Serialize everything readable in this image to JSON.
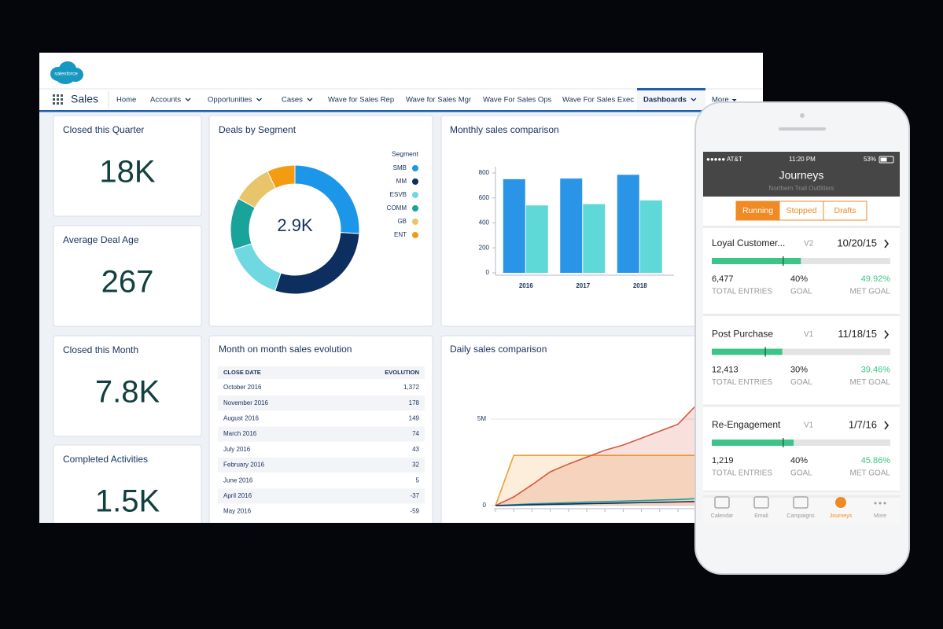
{
  "app": {
    "logo": "salesforce",
    "name": "Sales",
    "nav": [
      "Home",
      "Accounts",
      "Opportunities",
      "Cases",
      "Wave for Sales Rep",
      "Wave for Sales Mgr",
      "Wave For Sales Ops",
      "Wave For Sales Exec",
      "Dashboards",
      "More"
    ]
  },
  "kpis": [
    {
      "label": "Closed this Quarter",
      "value": "18K"
    },
    {
      "label": "Average Deal Age",
      "value": "267"
    },
    {
      "label": "Closed this Month",
      "value": "7.8K"
    },
    {
      "label": "Completed Activities",
      "value": "1.5K"
    }
  ],
  "chart_data": [
    {
      "type": "donut",
      "title": "Deals by Segment",
      "center_label": "2.9K",
      "legend_title": "Segment",
      "categories": [
        "SMB",
        "MM",
        "ESVB",
        "COMM",
        "GB",
        "ENT"
      ],
      "values": [
        26,
        29,
        15,
        13,
        10,
        7
      ],
      "colors": [
        "#1b96e8",
        "#0d2f5f",
        "#6fd8e0",
        "#1aa39a",
        "#e8c56a",
        "#f39c12"
      ]
    },
    {
      "type": "bar",
      "title": "Monthly sales comparison",
      "categories": [
        "2016",
        "2017",
        "2018"
      ],
      "series": [
        {
          "color": "#2a94e6",
          "values": [
            750,
            755,
            785
          ]
        },
        {
          "color": "#5fd8d8",
          "values": [
            540,
            550,
            580
          ]
        }
      ],
      "ylim": [
        0,
        850
      ],
      "yticks": [
        0,
        200,
        400,
        600,
        800
      ],
      "grid": false
    },
    {
      "type": "line",
      "title": "Daily sales comparison",
      "categories": [
        null,
        null,
        null,
        null,
        null,
        null,
        null,
        null,
        null,
        null,
        null,
        null
      ],
      "series": [
        {
          "color": "#f0a030",
          "values": [
            0,
            2900000,
            2900000,
            2900000,
            2900000,
            2900000,
            2900000,
            2900000,
            2900000,
            2900000,
            2900000,
            2900000
          ]
        },
        {
          "color": "#d9573f",
          "values": [
            0,
            500000,
            1200000,
            1950000,
            2400000,
            2800000,
            3200000,
            3500000,
            3900000,
            4300000,
            4700000,
            5800000
          ]
        },
        {
          "color": "#1aa39a",
          "values": [
            0,
            50000,
            100000,
            130000,
            160000,
            200000,
            230000,
            260000,
            290000,
            320000,
            350000,
            400000
          ]
        },
        {
          "color": "#0d2f5f",
          "values": [
            0,
            20000,
            50000,
            70000,
            90000,
            110000,
            130000,
            150000,
            170000,
            190000,
            210000,
            230000
          ]
        }
      ],
      "ylim": [
        0,
        8000000
      ],
      "yticks": [
        0,
        {
          "value": 5000000,
          "label": "5M"
        }
      ],
      "grid": true,
      "fill": true
    }
  ],
  "table": {
    "title": "Month on month sales evolution",
    "header": [
      "CLOSE DATE",
      "EVOLUTION"
    ],
    "rows": [
      [
        "October 2016",
        "1,372"
      ],
      [
        "November 2016",
        "178"
      ],
      [
        "August 2016",
        "149"
      ],
      [
        "March 2016",
        "74"
      ],
      [
        "July 2016",
        "43"
      ],
      [
        "February 2016",
        "32"
      ],
      [
        "June 2016",
        "5"
      ],
      [
        "April 2016",
        "-37"
      ],
      [
        "May 2016",
        "-59"
      ]
    ]
  },
  "phone": {
    "status": {
      "carrier": "●●●●● AT&T",
      "time": "11:20 PM",
      "battery": "53%"
    },
    "title": "Journeys",
    "subtitle": "Northern Trail Outfitters",
    "tabs": [
      "Running",
      "Stopped",
      "Drafts"
    ],
    "stat_labels": [
      "TOTAL ENTRIES",
      "GOAL",
      "MET GOAL"
    ],
    "journeys": [
      {
        "name": "Loyal Customer...",
        "version": "V2",
        "date": "10/20/15",
        "entries": "6,477",
        "goal": {
          "value": 40,
          "label": "40%"
        },
        "met": {
          "value": 49.92,
          "label": "49.92%"
        }
      },
      {
        "name": "Post Purchase",
        "version": "V1",
        "date": "11/18/15",
        "entries": "12,413",
        "goal": {
          "value": 30,
          "label": "30%"
        },
        "met": {
          "value": 39.46,
          "label": "39.46%"
        }
      },
      {
        "name": "Re-Engagement",
        "version": "V1",
        "date": "1/7/16",
        "entries": "1,219",
        "goal": {
          "value": 40,
          "label": "40%"
        },
        "met": {
          "value": 45.86,
          "label": "45.86%"
        }
      }
    ],
    "toolbar": [
      "Calendar",
      "Email",
      "Campaigns",
      "Journeys",
      "More"
    ]
  }
}
